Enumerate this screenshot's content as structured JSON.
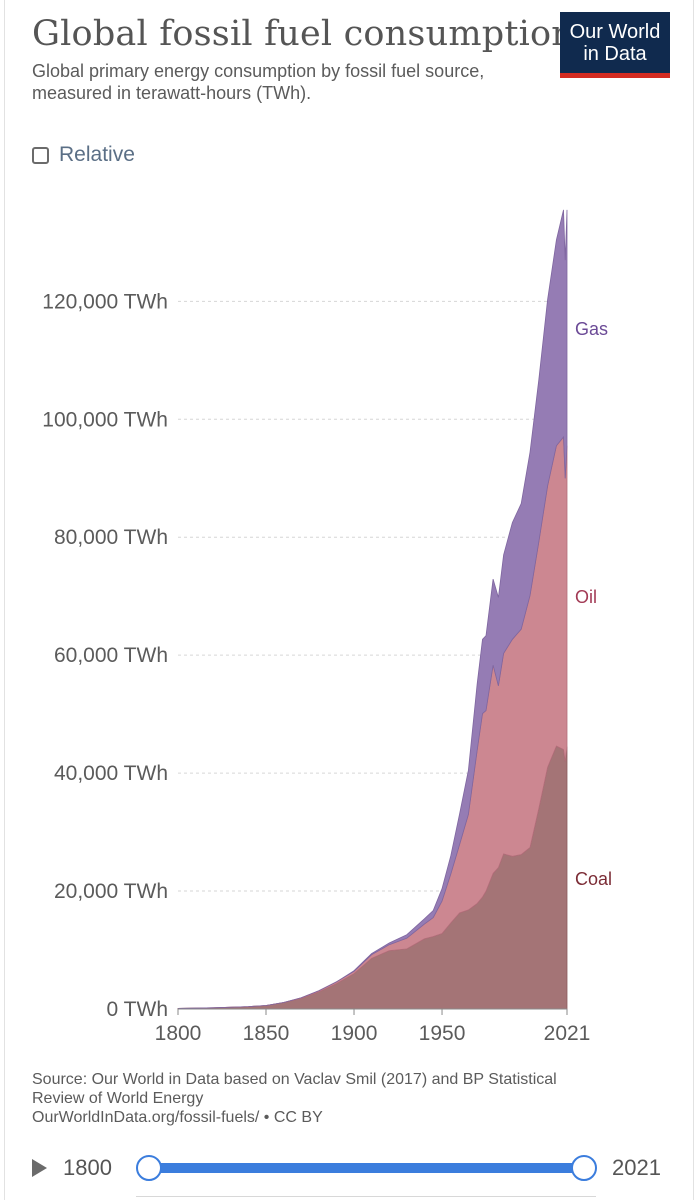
{
  "header": {
    "title": "Global fossil fuel consumption",
    "subtitle": "Global primary energy consumption by fossil fuel source, measured in terawatt-hours (TWh).",
    "logo_line1": "Our World",
    "logo_line2": "in Data",
    "relative_label": "Relative"
  },
  "colors": {
    "coal": "#a47476",
    "oil": "#cc8791",
    "gas": "#957cb4",
    "coal_label": "#7b2c35",
    "oil_label": "#a23a55",
    "gas_label": "#6b4a96",
    "slider": "#3b7ddd",
    "logo_bg": "#102a4e",
    "logo_bar": "#d42b21"
  },
  "chart_data": {
    "type": "area",
    "stacked": true,
    "y_unit": "TWh",
    "ylim": [
      0,
      136000
    ],
    "xlim": [
      1800,
      2021
    ],
    "y_ticks": [
      "0 TWh",
      "20,000 TWh",
      "40,000 TWh",
      "60,000 TWh",
      "80,000 TWh",
      "100,000 TWh",
      "120,000 TWh"
    ],
    "y_tick_values": [
      0,
      20000,
      40000,
      60000,
      80000,
      100000,
      120000
    ],
    "x_ticks": [
      "1800",
      "1850",
      "1900",
      "1950",
      "2021"
    ],
    "x_tick_values": [
      1800,
      1850,
      1900,
      1950,
      2021
    ],
    "grid": true,
    "x": [
      1800,
      1820,
      1840,
      1850,
      1860,
      1870,
      1880,
      1890,
      1900,
      1910,
      1920,
      1930,
      1940,
      1945,
      1950,
      1955,
      1960,
      1965,
      1970,
      1973,
      1975,
      1979,
      1982,
      1985,
      1990,
      1995,
      2000,
      2005,
      2010,
      2015,
      2019,
      2020,
      2021
    ],
    "series": [
      {
        "name": "Coal",
        "values": [
          100,
          200,
          400,
          600,
          1100,
          1800,
          2900,
          4300,
          6000,
          8600,
          9900,
          10200,
          11900,
          12300,
          12800,
          14600,
          16300,
          16800,
          17900,
          19000,
          20000,
          23000,
          24000,
          26300,
          25900,
          26200,
          27400,
          34000,
          41000,
          44600,
          44000,
          42000,
          44500
        ]
      },
      {
        "name": "Oil",
        "values": [
          0,
          0,
          0,
          0,
          0,
          100,
          200,
          300,
          400,
          600,
          1000,
          1800,
          2500,
          3200,
          5500,
          8300,
          11600,
          16200,
          26000,
          31100,
          30600,
          35300,
          30800,
          34000,
          36800,
          38200,
          42700,
          45200,
          47700,
          50900,
          53000,
          48000,
          51000
        ]
      },
      {
        "name": "Gas",
        "values": [
          0,
          0,
          0,
          0,
          0,
          0,
          0,
          0,
          100,
          200,
          300,
          600,
          900,
          1200,
          2100,
          3100,
          5200,
          7500,
          11300,
          12600,
          12700,
          14600,
          15000,
          16700,
          19800,
          21300,
          24300,
          27500,
          31600,
          34900,
          38500,
          37000,
          40000
        ]
      }
    ],
    "series_labels": [
      "Gas",
      "Oil",
      "Coal"
    ]
  },
  "footer": {
    "source_line1": "Source: Our World in Data based on Vaclav Smil (2017) and BP Statistical",
    "source_line2": "Review of World Energy",
    "source_line3": "OurWorldInData.org/fossil-fuels/ • CC BY"
  },
  "timeline": {
    "start_year": "1800",
    "end_year": "2021",
    "play_icon": "play-icon"
  }
}
